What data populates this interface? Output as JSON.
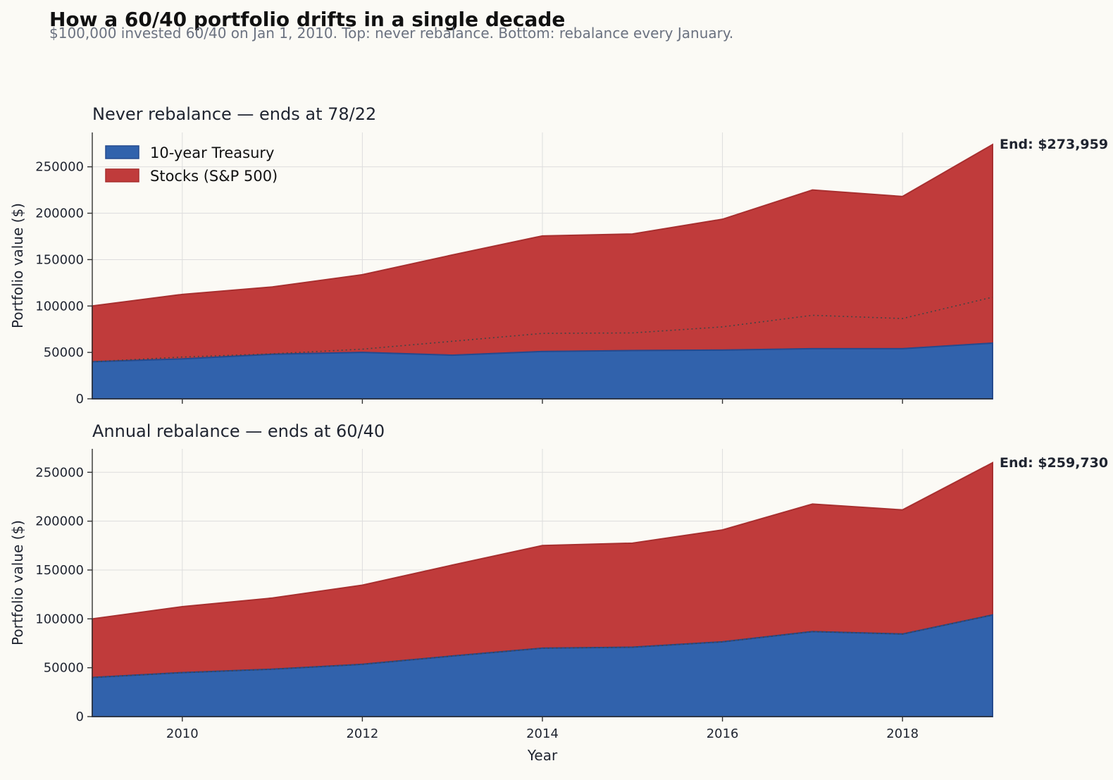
{
  "figure": {
    "title": "How a 60/40 portfolio drifts in a single decade",
    "subtitle": "$100,000 invested 60/40 on Jan 1, 2010. Top: never rebalance. Bottom: rebalance every January."
  },
  "colors": {
    "bonds": "#3162ac",
    "bonds_edge": "#244a8f",
    "stocks": "#c03b3b",
    "stocks_edge": "#a82f2f",
    "reference_line": "#444444"
  },
  "chart_data": [
    {
      "type": "area",
      "title": "Never rebalance — ends at 78/22",
      "xlabel": "",
      "ylabel": "Portfolio value ($)",
      "x": [
        2009,
        2010,
        2011,
        2012,
        2013,
        2014,
        2015,
        2016,
        2017,
        2018,
        2019
      ],
      "xlim": [
        2009,
        2019
      ],
      "ylim": [
        0,
        287000
      ],
      "xticks": [
        2010,
        2012,
        2014,
        2016,
        2018
      ],
      "yticks": [
        0,
        50000,
        100000,
        150000,
        200000,
        250000
      ],
      "grid": true,
      "stacked": true,
      "legend": {
        "position": "top-left",
        "entries": [
          "10-year Treasury",
          "Stocks (S&P 500)"
        ]
      },
      "series": [
        {
          "name": "10-year Treasury",
          "values": [
            40000,
            43000,
            48000,
            50000,
            47000,
            51000,
            52000,
            52500,
            54000,
            54000,
            60000
          ]
        },
        {
          "name": "Stocks (S&P 500)",
          "values": [
            60000,
            69500,
            72500,
            83700,
            108000,
            124500,
            125600,
            141000,
            171000,
            164000,
            213959
          ]
        }
      ],
      "reference_line": {
        "values": [
          40000,
          45000,
          48500,
          53500,
          62000,
          70500,
          71000,
          77500,
          90000,
          86500,
          109500
        ]
      },
      "end_annotation": "End: $273,959"
    },
    {
      "type": "area",
      "title": "Annual rebalance — ends at 60/40",
      "xlabel": "Year",
      "ylabel": "Portfolio value ($)",
      "x": [
        2009,
        2010,
        2011,
        2012,
        2013,
        2014,
        2015,
        2016,
        2017,
        2018,
        2019
      ],
      "xlim": [
        2009,
        2019
      ],
      "ylim": [
        0,
        274000
      ],
      "xticks": [
        2010,
        2012,
        2014,
        2016,
        2018
      ],
      "yticks": [
        0,
        50000,
        100000,
        150000,
        200000,
        250000
      ],
      "grid": true,
      "stacked": true,
      "series": [
        {
          "name": "10-year Treasury",
          "values": [
            40000,
            45000,
            48500,
            53500,
            62000,
            70000,
            71000,
            76500,
            87000,
            84500,
            104000
          ]
        },
        {
          "name": "Stocks (S&P 500)",
          "values": [
            60000,
            67500,
            72800,
            81000,
            93000,
            105000,
            106500,
            114500,
            130500,
            127000,
            155730
          ]
        }
      ],
      "reference_line": {
        "values": [
          40000,
          45000,
          48500,
          53500,
          62000,
          70000,
          71000,
          76500,
          87000,
          84500,
          104000
        ]
      },
      "end_annotation": "End: $259,730"
    }
  ]
}
